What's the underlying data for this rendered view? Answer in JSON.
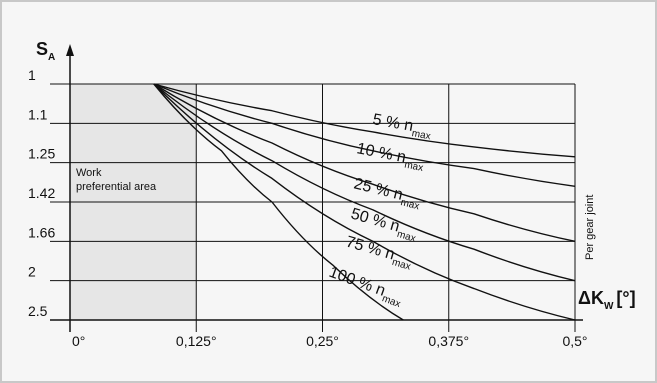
{
  "chart_data": {
    "type": "line",
    "ylabel": "S",
    "ylabel_sub": "A",
    "xlabel": "ΔK",
    "xlabel_sub": "W",
    "xlabel_unit": "[°]",
    "x_ticks": [
      "0°",
      "0,125°",
      "0,25°",
      "0,375°",
      "0,5°"
    ],
    "x_tick_values": [
      0,
      0.125,
      0.25,
      0.375,
      0.5
    ],
    "y_ticks": [
      "1",
      "1.1",
      "1.25",
      "1.42",
      "1.66",
      "2",
      "2.5"
    ],
    "xlim": [
      0,
      0.5
    ],
    "shaded_region": {
      "x": [
        0,
        0.125
      ],
      "label_line1": "Work",
      "label_line2": "preferential area"
    },
    "side_note": "Per gear joint",
    "grid": true,
    "series": [
      {
        "name": "5 %",
        "sub": "max",
        "x": [
          0.083,
          0.2,
          0.3,
          0.4,
          0.5
        ],
        "y_index": [
          0,
          0.68,
          1.22,
          1.6,
          1.85
        ]
      },
      {
        "name": "10 %",
        "sub": "max",
        "x": [
          0.083,
          0.2,
          0.3,
          0.4,
          0.5
        ],
        "y_index": [
          0,
          1.0,
          1.7,
          2.15,
          2.6
        ]
      },
      {
        "name": "25 %",
        "sub": "max",
        "x": [
          0.083,
          0.2,
          0.3,
          0.4,
          0.5
        ],
        "y_index": [
          0,
          1.5,
          2.55,
          3.3,
          4.0
        ]
      },
      {
        "name": "50 %",
        "sub": "max",
        "x": [
          0.083,
          0.2,
          0.3,
          0.4,
          0.5
        ],
        "y_index": [
          0,
          1.95,
          3.2,
          4.2,
          5.0
        ]
      },
      {
        "name": "75 %",
        "sub": "max",
        "x": [
          0.083,
          0.2,
          0.3,
          0.4,
          0.5
        ],
        "y_index": [
          0,
          2.4,
          4.0,
          5.2,
          6.0
        ]
      },
      {
        "name": "100 %",
        "sub": "max",
        "x": [
          0.083,
          0.15,
          0.2,
          0.26,
          0.33
        ],
        "y_index": [
          0,
          1.7,
          3.0,
          4.6,
          6.0
        ]
      }
    ],
    "series_label_word": "n"
  }
}
